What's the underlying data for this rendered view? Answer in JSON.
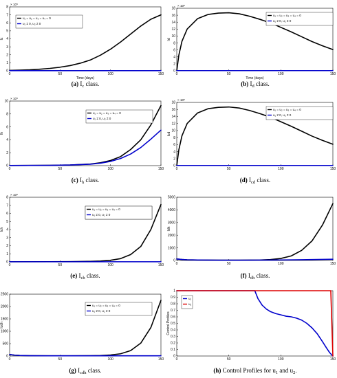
{
  "captions": [
    {
      "letter": "(a)",
      "rest": " I",
      "sub": "c",
      "tail": " class."
    },
    {
      "letter": "(b)",
      "rest": " I",
      "sub": "d",
      "tail": " class."
    },
    {
      "letter": "(c)",
      "rest": " I",
      "sub": "h",
      "tail": " class."
    },
    {
      "letter": "(d)",
      "rest": " I",
      "sub": "cd",
      "tail": " class."
    },
    {
      "letter": "(e)",
      "rest": " I",
      "sub": "ch",
      "tail": " class."
    },
    {
      "letter": "(f)",
      "rest": " I",
      "sub": "dh",
      "tail": " class."
    },
    {
      "letter": "(g)",
      "rest": " I",
      "sub": "cdh",
      "tail": " class."
    },
    {
      "letter": "(h)",
      "rest": " Control Profiles for u",
      "sub": "1",
      "tail": " and u",
      "sub2": "2",
      "tail2": "."
    }
  ],
  "chart_data": [
    {
      "type": "line",
      "panel": "a",
      "xlabel": "Time (days)",
      "ylabel": "Ic",
      "xlim": [
        0,
        150
      ],
      "ylim": [
        0,
        8
      ],
      "xticks": [
        "0",
        "50",
        "100",
        "150"
      ],
      "yticks": [
        "0",
        "1",
        "2",
        "3",
        "4",
        "5",
        "6",
        "7",
        "8"
      ],
      "exponent": "× 10⁵",
      "legend_position": "top-left",
      "series": [
        {
          "name": "u₁ = u₂ = u₃ = u₄ = 0",
          "color": "#000000",
          "x": [
            0,
            10,
            20,
            30,
            40,
            50,
            60,
            70,
            80,
            90,
            100,
            110,
            120,
            130,
            140,
            150
          ],
          "y": [
            0.05,
            0.08,
            0.12,
            0.2,
            0.3,
            0.45,
            0.65,
            0.95,
            1.35,
            1.95,
            2.7,
            3.6,
            4.6,
            5.6,
            6.45,
            7.0
          ]
        },
        {
          "name": "u₁ ≠ 0, u₂ ≠ 0",
          "color": "#0000cc",
          "x": [
            0,
            50,
            100,
            150
          ],
          "y": [
            0.02,
            0.02,
            0.02,
            0.02
          ]
        }
      ]
    },
    {
      "type": "line",
      "panel": "b",
      "xlabel": "Time (days)",
      "ylabel": "Id",
      "xlim": [
        0,
        150
      ],
      "ylim": [
        0,
        18
      ],
      "xticks": [
        "0",
        "50",
        "100",
        "150"
      ],
      "yticks": [
        "0",
        "2",
        "4",
        "6",
        "8",
        "10",
        "12",
        "14",
        "16",
        "18"
      ],
      "exponent": "× 10⁵",
      "legend_position": "top-right",
      "series": [
        {
          "name": "u₁ = u₂ = u₃ = u₄ = 0",
          "color": "#000000",
          "x": [
            0,
            2,
            5,
            10,
            20,
            30,
            40,
            50,
            60,
            70,
            80,
            90,
            100,
            110,
            120,
            130,
            140,
            150
          ],
          "y": [
            0,
            4.5,
            8.5,
            12,
            15,
            16.2,
            16.6,
            16.7,
            16.4,
            15.7,
            14.8,
            13.8,
            12.5,
            11.2,
            9.8,
            8.4,
            7.2,
            6.1
          ]
        },
        {
          "name": "u₁ ≠ 0, u₂ ≠ 0",
          "color": "#0000cc",
          "x": [
            0,
            50,
            100,
            150
          ],
          "y": [
            0.05,
            0.05,
            0.05,
            0.05
          ]
        }
      ]
    },
    {
      "type": "line",
      "panel": "c",
      "xlabel": "",
      "ylabel": "Ih",
      "xlim": [
        0,
        150
      ],
      "ylim": [
        0,
        10
      ],
      "xticks": [
        "0",
        "50",
        "100",
        "150"
      ],
      "yticks": [
        "0",
        "2",
        "4",
        "6",
        "8",
        "10"
      ],
      "exponent": "× 10⁵",
      "legend_position": "top-left",
      "series": [
        {
          "name": "u₁ = u₂ = u₃ = u₄ = 0",
          "color": "#000000",
          "x": [
            0,
            20,
            40,
            60,
            80,
            90,
            100,
            110,
            120,
            130,
            140,
            150
          ],
          "y": [
            0.02,
            0.03,
            0.05,
            0.1,
            0.25,
            0.45,
            0.8,
            1.4,
            2.5,
            4.0,
            6.3,
            9.3
          ]
        },
        {
          "name": "u₁ ≠ 0, u₂ ≠ 0",
          "color": "#0000cc",
          "x": [
            0,
            20,
            40,
            60,
            80,
            90,
            100,
            110,
            120,
            130,
            140,
            150
          ],
          "y": [
            0.02,
            0.03,
            0.05,
            0.1,
            0.22,
            0.38,
            0.65,
            1.1,
            1.8,
            2.8,
            4.1,
            5.5
          ]
        }
      ]
    },
    {
      "type": "line",
      "panel": "d",
      "xlabel": "",
      "ylabel": "Icd",
      "xlim": [
        0,
        150
      ],
      "ylim": [
        0,
        18
      ],
      "xticks": [
        "0",
        "50",
        "100",
        "150"
      ],
      "yticks": [
        "0",
        "2",
        "4",
        "6",
        "8",
        "10",
        "12",
        "14",
        "16",
        "18"
      ],
      "exponent": "× 10⁵",
      "legend_position": "top-right",
      "series": [
        {
          "name": "u₁ = u₂ = u₃ = u₄ = 0",
          "color": "#000000",
          "x": [
            0,
            2,
            5,
            10,
            20,
            30,
            40,
            50,
            60,
            70,
            80,
            90,
            100,
            110,
            120,
            130,
            140,
            150
          ],
          "y": [
            0,
            4.5,
            8.5,
            12,
            15,
            16.2,
            16.6,
            16.7,
            16.4,
            15.7,
            14.8,
            13.8,
            12.5,
            11.2,
            9.8,
            8.4,
            7.2,
            6.1
          ]
        },
        {
          "name": "u₁ ≠ 0, u₂ ≠ 0",
          "color": "#0000cc",
          "x": [
            0,
            50,
            100,
            150
          ],
          "y": [
            0.05,
            0.05,
            0.05,
            0.05
          ]
        }
      ]
    },
    {
      "type": "line",
      "panel": "e",
      "xlabel": "",
      "ylabel": "Ich",
      "xlim": [
        0,
        150
      ],
      "ylim": [
        0,
        8
      ],
      "xticks": [
        "0",
        "50",
        "100",
        "150"
      ],
      "yticks": [
        "0",
        "1",
        "2",
        "3",
        "4",
        "5",
        "6",
        "7",
        "8"
      ],
      "exponent": "× 10⁵",
      "legend_position": "top-left",
      "series": [
        {
          "name": "u₁ = u₂ = u₃ = u₄ = 0",
          "color": "#000000",
          "x": [
            0,
            40,
            60,
            80,
            90,
            100,
            110,
            120,
            130,
            140,
            150
          ],
          "y": [
            0.01,
            0.02,
            0.03,
            0.06,
            0.1,
            0.2,
            0.4,
            0.9,
            1.9,
            4.0,
            7.1
          ]
        },
        {
          "name": "u₁ ≠ 0, u₂ ≠ 0",
          "color": "#0000cc",
          "x": [
            0,
            50,
            100,
            150
          ],
          "y": [
            0.01,
            0.01,
            0.01,
            0.01
          ]
        }
      ]
    },
    {
      "type": "line",
      "panel": "f",
      "xlabel": "",
      "ylabel": "Idh",
      "xlim": [
        0,
        150
      ],
      "ylim": [
        0,
        5000
      ],
      "xticks": [
        "0",
        "50",
        "100",
        "150"
      ],
      "yticks": [
        "0",
        "1000",
        "2000",
        "3000",
        "4000",
        "5000"
      ],
      "exponent": "",
      "legend_position": "top-left",
      "series": [
        {
          "name": "u₁ = u₂ = u₃ = u₄ = 0",
          "color": "#000000",
          "x": [
            0,
            5,
            10,
            20,
            40,
            60,
            80,
            90,
            100,
            110,
            120,
            130,
            140,
            150
          ],
          "y": [
            120,
            80,
            55,
            35,
            25,
            25,
            40,
            70,
            160,
            360,
            800,
            1550,
            2800,
            4500
          ]
        },
        {
          "name": "u₁ ≠ 0, u₂ ≠ 0",
          "color": "#0000cc",
          "x": [
            0,
            5,
            10,
            20,
            40,
            60,
            80,
            100,
            120,
            150
          ],
          "y": [
            120,
            80,
            55,
            35,
            25,
            25,
            30,
            40,
            60,
            100
          ]
        }
      ]
    },
    {
      "type": "line",
      "panel": "g",
      "xlabel": "",
      "ylabel": "Icdh",
      "xlim": [
        0,
        150
      ],
      "ylim": [
        0,
        2500
      ],
      "xticks": [
        "0",
        "50",
        "100",
        "150"
      ],
      "yticks": [
        "0",
        "500",
        "1000",
        "1500",
        "2000",
        "2500"
      ],
      "exponent": "",
      "legend_position": "top-right",
      "series": [
        {
          "name": "u₁ = u₂ = u₃ = u₄ = 0",
          "color": "#000000",
          "x": [
            0,
            5,
            10,
            20,
            40,
            60,
            80,
            90,
            100,
            110,
            120,
            130,
            140,
            150
          ],
          "y": [
            60,
            35,
            22,
            12,
            8,
            8,
            12,
            20,
            40,
            90,
            220,
            520,
            1150,
            2250
          ]
        },
        {
          "name": "u₁ ≠ 0, u₂ ≠ 0",
          "color": "#0000cc",
          "x": [
            0,
            5,
            10,
            20,
            40,
            60,
            80,
            100,
            150
          ],
          "y": [
            60,
            35,
            22,
            12,
            8,
            8,
            8,
            8,
            8
          ]
        }
      ]
    },
    {
      "type": "line",
      "panel": "h",
      "xlabel": "",
      "ylabel": "Control Profiles",
      "xlim": [
        0,
        150
      ],
      "ylim": [
        0,
        1
      ],
      "xticks": [
        "0",
        "50",
        "100",
        "150"
      ],
      "yticks": [
        "0",
        "0.1",
        "0.2",
        "0.3",
        "0.4",
        "0.5",
        "0.6",
        "0.7",
        "0.8",
        "0.9",
        "1"
      ],
      "exponent": "",
      "legend_position": "top-left",
      "series": [
        {
          "name": "u₁",
          "color": "#0000cc",
          "x": [
            0,
            40,
            60,
            75,
            78,
            82,
            86,
            90,
            95,
            100,
            105,
            110,
            115,
            120,
            125,
            130,
            135,
            140,
            144,
            147,
            150
          ],
          "y": [
            1,
            1,
            1,
            1,
            0.88,
            0.78,
            0.72,
            0.68,
            0.65,
            0.63,
            0.61,
            0.6,
            0.58,
            0.55,
            0.5,
            0.43,
            0.34,
            0.22,
            0.12,
            0.05,
            0
          ]
        },
        {
          "name": "u₂",
          "color": "#dd0000",
          "x": [
            0,
            50,
            100,
            148,
            149,
            150
          ],
          "y": [
            1,
            1,
            1,
            1,
            0.5,
            0
          ]
        }
      ]
    }
  ]
}
